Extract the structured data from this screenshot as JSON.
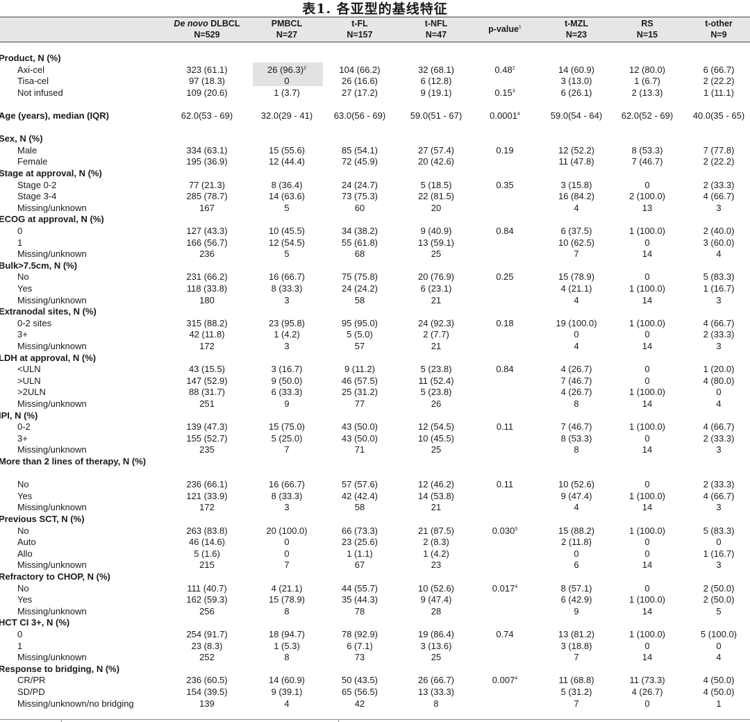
{
  "title": "表1. 各亚型的基线特征",
  "headers": [
    {
      "italic": "De novo",
      "name": " DLBCL",
      "n": "N=529"
    },
    {
      "name": "PMBCL",
      "n": "N=27"
    },
    {
      "name": "t-FL",
      "n": "N=157"
    },
    {
      "name": "t-NFL",
      "n": "N=47"
    },
    {
      "name": "p-value",
      "sup": "1"
    },
    {
      "name": "t-MZL",
      "n": "N=23"
    },
    {
      "name": "RS",
      "n": "N=15"
    },
    {
      "name": "t-other",
      "n": "N=9"
    }
  ],
  "rows": [
    {
      "type": "section",
      "label": "Product, N (%)"
    },
    {
      "label": "Axi-cel",
      "cells": [
        "323 (61.1)",
        "26 (96.3)",
        "104 (66.2)",
        "32 (68.1)",
        "0.48",
        "14 (60.9)",
        "12 (80.0)",
        "6 (66.7)"
      ],
      "sups": {
        "1": "2",
        "4": "2"
      }
    },
    {
      "label": "Tisa-cel",
      "cells": [
        "97 (18.3)",
        "0",
        "26 (16.6)",
        "6 (12.8)",
        "",
        "3 (13.0)",
        "1 (6.7)",
        "2 (22.2)"
      ]
    },
    {
      "label": "Not infused",
      "cells": [
        "109 (20.6)",
        "1 (3.7)",
        "27 (17.2)",
        "9 (19.1)",
        "0.15",
        "6 (26.1)",
        "2 (13.3)",
        "1 (11.1)"
      ],
      "sups": {
        "4": "3"
      }
    },
    {
      "type": "gap"
    },
    {
      "type": "section",
      "label": "Age (years), median (IQR)",
      "cells": [
        "62.0(53 - 69)",
        "32.0(29 - 41)",
        "63.0(56 - 69)",
        "59.0(51 - 67)",
        "0.0001",
        "59.0(54 - 64)",
        "62.0(52 - 69)",
        "40.0(35 - 65)"
      ],
      "sups": {
        "4": "4"
      }
    },
    {
      "type": "gap"
    },
    {
      "type": "section",
      "label": "Sex, N (%)"
    },
    {
      "label": "Male",
      "cells": [
        "334 (63.1)",
        "15 (55.6)",
        "85 (54.1)",
        "27 (57.4)",
        "0.19",
        "12 (52.2)",
        "8 (53.3)",
        "7 (77.8)"
      ]
    },
    {
      "label": "Female",
      "cells": [
        "195 (36.9)",
        "12 (44.4)",
        "72 (45.9)",
        "20 (42.6)",
        "",
        "11 (47.8)",
        "7 (46.7)",
        "2 (22.2)"
      ]
    },
    {
      "type": "section",
      "label": "Stage at approval, N (%)"
    },
    {
      "label": "Stage 0-2",
      "cells": [
        "77 (21.3)",
        "8 (36.4)",
        "24 (24.7)",
        "5 (18.5)",
        "0.35",
        "3 (15.8)",
        "0",
        "2 (33.3)"
      ]
    },
    {
      "label": "Stage 3-4",
      "cells": [
        "285 (78.7)",
        "14 (63.6)",
        "73 (75.3)",
        "22 (81.5)",
        "",
        "16 (84.2)",
        "2 (100.0)",
        "4 (66.7)"
      ]
    },
    {
      "label": "Missing/unknown",
      "cells": [
        "167",
        "5",
        "60",
        "20",
        "",
        "4",
        "13",
        "3"
      ]
    },
    {
      "type": "section",
      "label": "ECOG at approval, N (%)"
    },
    {
      "label": "0",
      "cells": [
        "127 (43.3)",
        "10 (45.5)",
        "34 (38.2)",
        "9 (40.9)",
        "0.84",
        "6 (37.5)",
        "1 (100.0)",
        "2 (40.0)"
      ]
    },
    {
      "label": "1",
      "cells": [
        "166 (56.7)",
        "12 (54.5)",
        "55 (61.8)",
        "13 (59.1)",
        "",
        "10 (62.5)",
        "0",
        "3 (60.0)"
      ]
    },
    {
      "label": "Missing/unknown",
      "cells": [
        "236",
        "5",
        "68",
        "25",
        "",
        "7",
        "14",
        "4"
      ]
    },
    {
      "type": "section",
      "label": "Bulk>7.5cm, N (%)"
    },
    {
      "label": "No",
      "cells": [
        "231 (66.2)",
        "16 (66.7)",
        "75 (75.8)",
        "20 (76.9)",
        "0.25",
        "15 (78.9)",
        "0",
        "5 (83.3)"
      ]
    },
    {
      "label": "Yes",
      "cells": [
        "118 (33.8)",
        "8 (33.3)",
        "24 (24.2)",
        "6 (23.1)",
        "",
        "4 (21.1)",
        "1 (100.0)",
        "1 (16.7)"
      ]
    },
    {
      "label": "Missing/unknown",
      "cells": [
        "180",
        "3",
        "58",
        "21",
        "",
        "4",
        "14",
        "3"
      ]
    },
    {
      "type": "section",
      "label": "Extranodal sites, N (%)"
    },
    {
      "label": "0-2 sites",
      "cells": [
        "315 (88.2)",
        "23 (95.8)",
        "95 (95.0)",
        "24 (92.3)",
        "0.18",
        "19 (100.0)",
        "1 (100.0)",
        "4 (66.7)"
      ]
    },
    {
      "label": "3+",
      "cells": [
        "42 (11.8)",
        "1 (4.2)",
        "5 (5.0)",
        "2 (7.7)",
        "",
        "0",
        "0",
        "2 (33.3)"
      ]
    },
    {
      "label": "Missing/unknown",
      "cells": [
        "172",
        "3",
        "57",
        "21",
        "",
        "4",
        "14",
        "3"
      ]
    },
    {
      "type": "section",
      "label": "LDH at approval, N (%)"
    },
    {
      "label": "<ULN",
      "cells": [
        "43 (15.5)",
        "3 (16.7)",
        "9 (11.2)",
        "5 (23.8)",
        "0.84",
        "4 (26.7)",
        "0",
        "1 (20.0)"
      ]
    },
    {
      "label": ">ULN",
      "cells": [
        "147 (52.9)",
        "9 (50.0)",
        "46 (57.5)",
        "11 (52.4)",
        "",
        "7 (46.7)",
        "0",
        "4 (80.0)"
      ]
    },
    {
      "label": ">2ULN",
      "cells": [
        "88 (31.7)",
        "6 (33.3)",
        "25 (31.2)",
        "5 (23.8)",
        "",
        "4 (26.7)",
        "1 (100.0)",
        "0"
      ]
    },
    {
      "label": "Missing/unknown",
      "cells": [
        "251",
        "9",
        "77",
        "26",
        "",
        "8",
        "14",
        "4"
      ]
    },
    {
      "type": "section",
      "label": "IPI, N (%)"
    },
    {
      "label": "0-2",
      "cells": [
        "139 (47.3)",
        "15 (75.0)",
        "43 (50.0)",
        "12 (54.5)",
        "0.11",
        "7 (46.7)",
        "1 (100.0)",
        "4 (66.7)"
      ]
    },
    {
      "label": "3+",
      "cells": [
        "155 (52.7)",
        "5 (25.0)",
        "43 (50.0)",
        "10 (45.5)",
        "",
        "8 (53.3)",
        "0",
        "2 (33.3)"
      ]
    },
    {
      "label": "Missing/unknown",
      "cells": [
        "235",
        "7",
        "71",
        "25",
        "",
        "8",
        "14",
        "3"
      ]
    },
    {
      "type": "section2",
      "label": "More than 2 lines of therapy, N (%)"
    },
    {
      "label": "No",
      "cells": [
        "236 (66.1)",
        "16 (66.7)",
        "57 (57.6)",
        "12 (46.2)",
        "0.11",
        "10 (52.6)",
        "0",
        "2 (33.3)"
      ]
    },
    {
      "label": "Yes",
      "cells": [
        "121 (33.9)",
        "8 (33.3)",
        "42 (42.4)",
        "14 (53.8)",
        "",
        "9 (47.4)",
        "1 (100.0)",
        "4 (66.7)"
      ]
    },
    {
      "label": "Missing/unknown",
      "cells": [
        "172",
        "3",
        "58",
        "21",
        "",
        "4",
        "14",
        "3"
      ]
    },
    {
      "type": "section",
      "label": "Previous SCT, N (%)"
    },
    {
      "label": "No",
      "cells": [
        "263 (83.8)",
        "20 (100.0)",
        "66 (73.3)",
        "21 (87.5)",
        "0.030",
        "15 (88.2)",
        "1 (100.0)",
        "5 (83.3)"
      ],
      "sups": {
        "4": "5"
      }
    },
    {
      "label": "Auto",
      "cells": [
        "46 (14.6)",
        "0",
        "23 (25.6)",
        "2 (8.3)",
        "",
        "2 (11.8)",
        "0",
        "0"
      ]
    },
    {
      "label": "Allo",
      "cells": [
        "5 (1.6)",
        "0",
        "1 (1.1)",
        "1 (4.2)",
        "",
        "0",
        "0",
        "1 (16.7)"
      ]
    },
    {
      "label": "Missing/unknown",
      "cells": [
        "215",
        "7",
        "67",
        "23",
        "",
        "6",
        "14",
        "3"
      ]
    },
    {
      "type": "section",
      "label": "Refractory to CHOP, N (%)"
    },
    {
      "label": "No",
      "cells": [
        "111 (40.7)",
        "4 (21.1)",
        "44 (55.7)",
        "10 (52.6)",
        "0.017",
        "8 (57.1)",
        "0",
        "2 (50.0)"
      ],
      "sups": {
        "4": "4"
      }
    },
    {
      "label": "Yes",
      "cells": [
        "162 (59.3)",
        "15 (78.9)",
        "35 (44.3)",
        "9 (47.4)",
        "",
        "6 (42.9)",
        "1 (100.0)",
        "2 (50.0)"
      ]
    },
    {
      "label": "Missing/unknown",
      "cells": [
        "256",
        "8",
        "78",
        "28",
        "",
        "9",
        "14",
        "5"
      ]
    },
    {
      "type": "section",
      "label": "HCT CI 3+, N (%)"
    },
    {
      "label": "0",
      "cells": [
        "254 (91.7)",
        "18 (94.7)",
        "78 (92.9)",
        "19 (86.4)",
        "0.74",
        "13 (81.2)",
        "1 (100.0)",
        "5 (100.0)"
      ]
    },
    {
      "label": "1",
      "cells": [
        "23 (8.3)",
        "1 (5.3)",
        "6 (7.1)",
        "3 (13.6)",
        "",
        "3 (18.8)",
        "0",
        "0"
      ]
    },
    {
      "label": "Missing/unknown",
      "cells": [
        "252",
        "8",
        "73",
        "25",
        "",
        "7",
        "14",
        "4"
      ]
    },
    {
      "type": "section",
      "label": "Response to bridging, N (%)"
    },
    {
      "label": "CR/PR",
      "cells": [
        "236 (60.5)",
        "14 (60.9)",
        "50 (43.5)",
        "26 (66.7)",
        "0.007",
        "11 (68.8)",
        "11 (73.3)",
        "4 (50.0)"
      ],
      "sups": {
        "4": "4"
      }
    },
    {
      "label": "SD/PD",
      "cells": [
        "154 (39.5)",
        "9 (39.1)",
        "65 (56.5)",
        "13 (33.3)",
        "",
        "5 (31.2)",
        "4 (26.7)",
        "4 (50.0)"
      ]
    },
    {
      "label": "Missing/unknown/no bridging",
      "cells": [
        "139",
        "4",
        "42",
        "8",
        "",
        "7",
        "0",
        "1"
      ]
    }
  ]
}
